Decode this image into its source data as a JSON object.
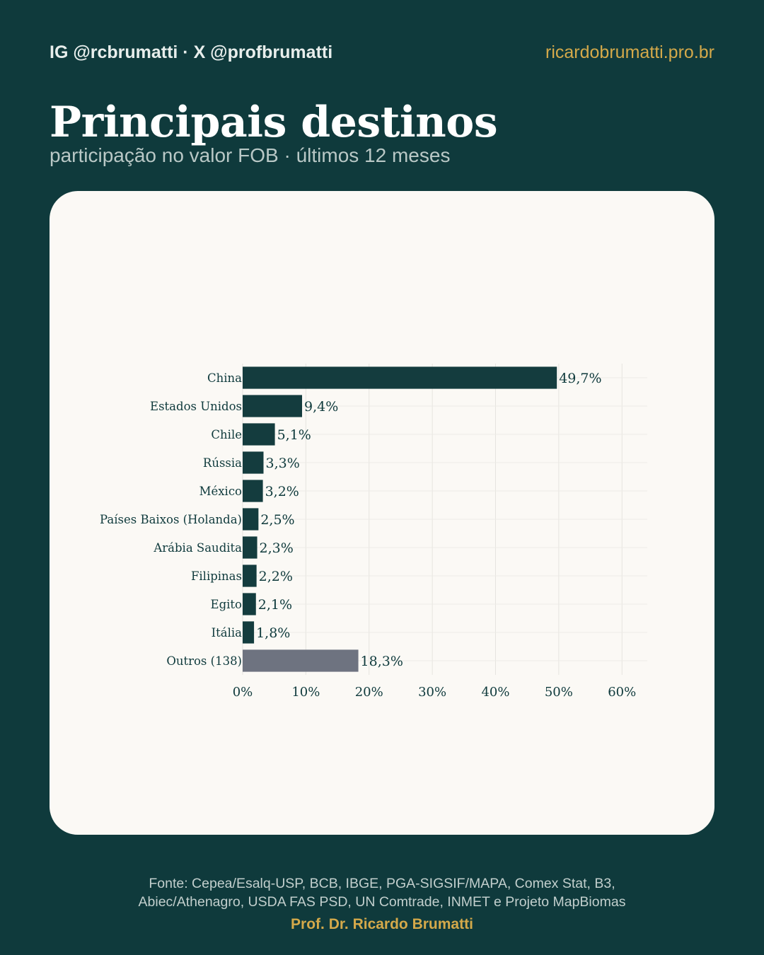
{
  "header": {
    "social": "IG @rcbrumatti · X @profbrumatti",
    "site": "ricardobrumatti.pro.br"
  },
  "title": "Principais destinos",
  "subtitle": "participação no valor FOB · últimos 12 meses",
  "footer": {
    "source_line1": "Fonte: Cepea/Esalq-USP, BCB, IBGE, PGA-SIGSIF/MAPA, Comex Stat, B3,",
    "source_line2": "Abiec/Athenagro, USDA FAS PSD, UN Comtrade, INMET e Projeto MapBiomas",
    "author": "Prof. Dr. Ricardo Brumatti"
  },
  "colors": {
    "background": "#0f3a3c",
    "accent": "#d4a94a",
    "bar": "#143c3e",
    "bar_other": "#6e7380",
    "card": "#fbf9f5"
  },
  "chart_data": {
    "type": "bar",
    "orientation": "horizontal",
    "categories": [
      "China",
      "Estados Unidos",
      "Chile",
      "Rússia",
      "México",
      "Países Baixos (Holanda)",
      "Arábia Saudita",
      "Filipinas",
      "Egito",
      "Itália",
      "Outros (138)"
    ],
    "values": [
      49.7,
      9.4,
      5.1,
      3.3,
      3.2,
      2.5,
      2.3,
      2.2,
      2.1,
      1.8,
      18.3
    ],
    "value_labels": [
      "49,7%",
      "9,4%",
      "5,1%",
      "3,3%",
      "3,2%",
      "2,5%",
      "2,3%",
      "2,2%",
      "2,1%",
      "1,8%",
      "18,3%"
    ],
    "highlight_last": true,
    "xlim": [
      0,
      64
    ],
    "xticks": [
      0,
      10,
      20,
      30,
      40,
      50,
      60
    ],
    "xtick_labels": [
      "0%",
      "10%",
      "20%",
      "30%",
      "40%",
      "50%",
      "60%"
    ],
    "grid": true
  }
}
